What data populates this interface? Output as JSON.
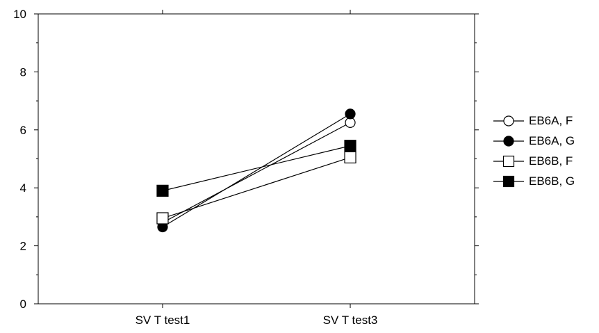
{
  "chart_data": {
    "type": "line",
    "categories": [
      "SV T test1",
      "SV T test3"
    ],
    "series": [
      {
        "name": "EB6A, F",
        "marker": "circle-open",
        "values": [
          2.8,
          6.25
        ]
      },
      {
        "name": "EB6A, G",
        "marker": "circle-filled",
        "values": [
          2.65,
          6.55
        ]
      },
      {
        "name": "EB6B, F",
        "marker": "square-open",
        "values": [
          2.95,
          5.05
        ]
      },
      {
        "name": "EB6B, G",
        "marker": "square-filled",
        "values": [
          3.9,
          5.45
        ]
      }
    ],
    "title": "",
    "xlabel": "",
    "ylabel": "",
    "ylim": [
      0,
      10
    ],
    "yticks": [
      "0",
      "2",
      "4",
      "6",
      "8",
      "10"
    ],
    "grid": false,
    "legend_position": "right",
    "colors": {
      "line": "#000000",
      "marker": "#000000",
      "background": "#ffffff"
    }
  }
}
